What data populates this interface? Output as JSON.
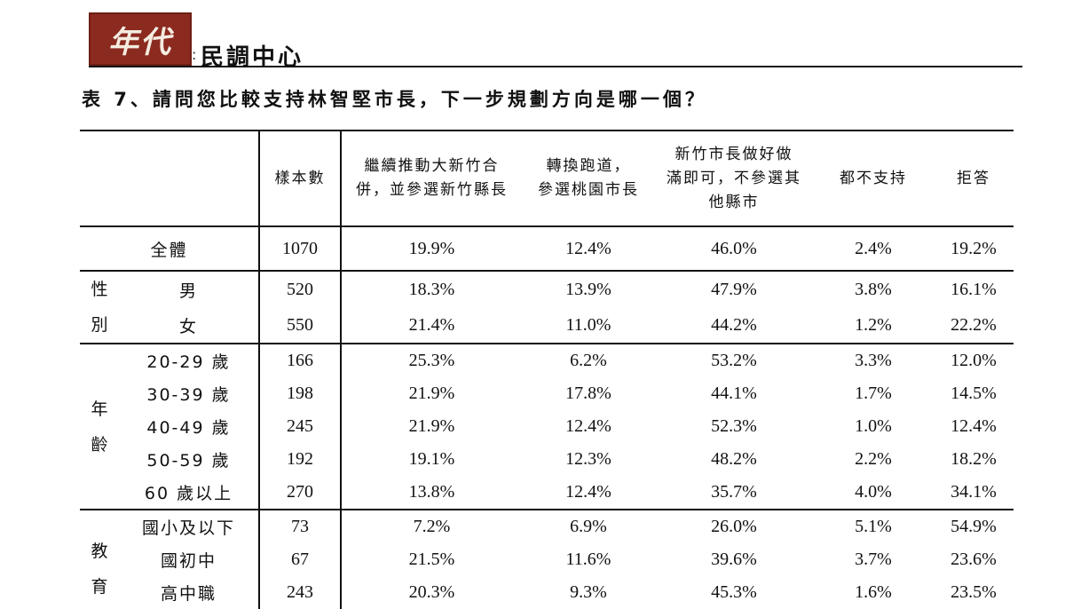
{
  "header": {
    "logo_text": "年代",
    "org_name": "民調中心"
  },
  "title": "表 7、請問您比較支持林智堅市長，下一步規劃方向是哪一個？",
  "table": {
    "columns": [
      "樣本數",
      "繼續推動大新竹合併，並參選新竹縣長",
      "轉換跑道，參選桃園市長",
      "新竹市長做好做滿即可，不參選其他縣市",
      "都不支持",
      "拒答"
    ],
    "column_lines": [
      [
        "樣本數"
      ],
      [
        "繼續推動大新竹合",
        "併，並參選新竹縣長"
      ],
      [
        "轉換跑道，",
        "參選桃園市長"
      ],
      [
        "新竹市長做好做",
        "滿即可，不參選其",
        "他縣市"
      ],
      [
        "都不支持"
      ],
      [
        "拒答"
      ]
    ],
    "total": {
      "label": "全體",
      "values": [
        "1070",
        "19.9%",
        "12.4%",
        "46.0%",
        "2.4%",
        "19.2%"
      ]
    },
    "groups": [
      {
        "name": "性別",
        "name_chars": [
          "性",
          "別"
        ],
        "rows": [
          {
            "label": "男",
            "values": [
              "520",
              "18.3%",
              "13.9%",
              "47.9%",
              "3.8%",
              "16.1%"
            ]
          },
          {
            "label": "女",
            "values": [
              "550",
              "21.4%",
              "11.0%",
              "44.2%",
              "1.2%",
              "22.2%"
            ]
          }
        ]
      },
      {
        "name": "年齡",
        "name_chars": [
          "年",
          "齡"
        ],
        "rows": [
          {
            "label": "20-29 歲",
            "values": [
              "166",
              "25.3%",
              "6.2%",
              "53.2%",
              "3.3%",
              "12.0%"
            ]
          },
          {
            "label": "30-39 歲",
            "values": [
              "198",
              "21.9%",
              "17.8%",
              "44.1%",
              "1.7%",
              "14.5%"
            ]
          },
          {
            "label": "40-49 歲",
            "values": [
              "245",
              "21.9%",
              "12.4%",
              "52.3%",
              "1.0%",
              "12.4%"
            ]
          },
          {
            "label": "50-59 歲",
            "values": [
              "192",
              "19.1%",
              "12.3%",
              "48.2%",
              "2.2%",
              "18.2%"
            ]
          },
          {
            "label": "60 歲以上",
            "values": [
              "270",
              "13.8%",
              "12.4%",
              "35.7%",
              "4.0%",
              "34.1%"
            ]
          }
        ]
      },
      {
        "name": "教育",
        "name_chars": [
          "教",
          "育"
        ],
        "rows": [
          {
            "label": "國小及以下",
            "values": [
              "73",
              "7.2%",
              "6.9%",
              "26.0%",
              "5.1%",
              "54.9%"
            ]
          },
          {
            "label": "國初中",
            "values": [
              "67",
              "21.5%",
              "11.6%",
              "39.6%",
              "3.7%",
              "23.6%"
            ]
          },
          {
            "label": "高中職",
            "values": [
              "243",
              "20.3%",
              "9.3%",
              "45.3%",
              "1.6%",
              "23.5%"
            ]
          }
        ]
      }
    ]
  }
}
